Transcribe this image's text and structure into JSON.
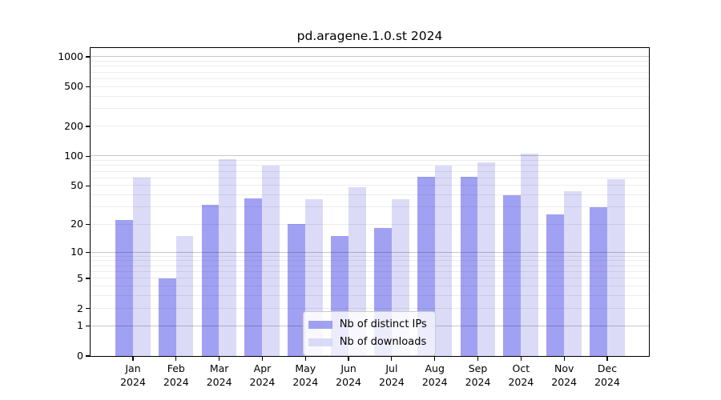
{
  "chart_data": {
    "type": "bar",
    "title": "pd.aragene.1.0.st 2024",
    "categories": [
      "Jan 2024",
      "Feb 2024",
      "Mar 2024",
      "Apr 2024",
      "May 2024",
      "Jun 2024",
      "Jul 2024",
      "Aug 2024",
      "Sep 2024",
      "Oct 2024",
      "Nov 2024",
      "Dec 2024"
    ],
    "series": [
      {
        "name": "Nb of distinct IPs",
        "color": "rgba(138,138,240,0.80)",
        "values": [
          22,
          5,
          32,
          37,
          20,
          15,
          18,
          62,
          62,
          40,
          25,
          30
        ]
      },
      {
        "name": "Nb of downloads",
        "color": "rgba(210,210,246,0.80)",
        "values": [
          60,
          15,
          92,
          80,
          36,
          48,
          36,
          80,
          86,
          105,
          44,
          58
        ]
      }
    ],
    "xlabel": "",
    "ylabel": "",
    "yscale": "log1p",
    "ylim": [
      0,
      1226
    ],
    "yticks": [
      0,
      1,
      2,
      5,
      10,
      20,
      50,
      100,
      200,
      500,
      1000
    ],
    "major_gridlines": [
      1,
      10,
      100,
      1000
    ],
    "minor_gridlines": [
      2,
      3,
      4,
      5,
      6,
      7,
      8,
      9,
      20,
      30,
      40,
      50,
      60,
      70,
      80,
      90,
      200,
      300,
      400,
      500,
      600,
      700,
      800,
      900
    ],
    "grid": true,
    "legend_position": "lower center"
  }
}
